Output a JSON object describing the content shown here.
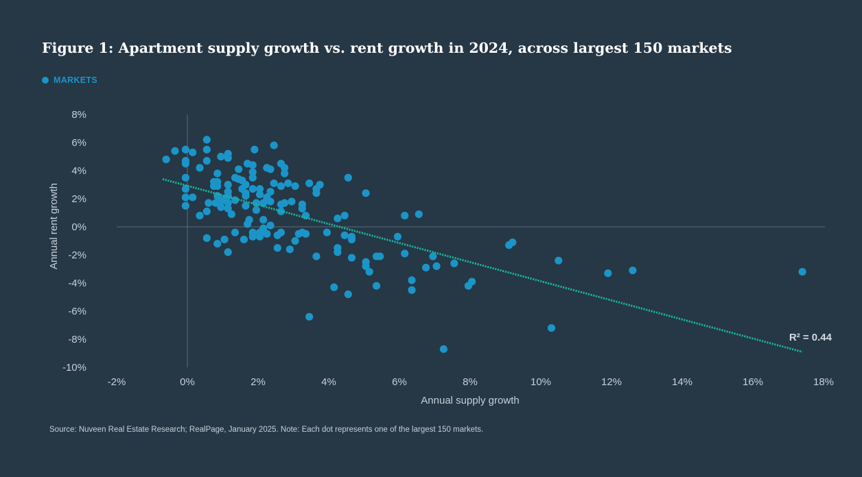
{
  "title": "Figure 1: Apartment supply growth vs. rent growth in 2024, across largest 150 markets",
  "legend": {
    "label": "MARKETS"
  },
  "source": "Source: Nuveen Real Estate Research; RealPage, January 2025. Note: Each dot represents one of the largest 150 markets.",
  "colors": {
    "background": "#263746",
    "point": "#1b95c8",
    "trend": "#19b59a",
    "axis": "#5a6b7a",
    "text": "#c7d0d8"
  },
  "chart_data": {
    "type": "scatter",
    "title": "Figure 1: Apartment supply growth vs. rent growth in 2024, across largest 150 markets",
    "xlabel": "Annual supply growth",
    "ylabel": "Annual rent growth",
    "xlim": [
      -2,
      18
    ],
    "ylim": [
      -10,
      8
    ],
    "xticks": [
      -2,
      0,
      2,
      4,
      6,
      8,
      10,
      12,
      14,
      16,
      18
    ],
    "yticks": [
      -10,
      -8,
      -6,
      -4,
      -2,
      0,
      2,
      4,
      6,
      8
    ],
    "x_tick_labels": [
      "-2%",
      "0%",
      "2%",
      "4%",
      "6%",
      "8%",
      "10%",
      "12%",
      "14%",
      "16%",
      "18%"
    ],
    "y_tick_labels": [
      "-10%",
      "-8%",
      "-6%",
      "-4%",
      "-2%",
      "0%",
      "2%",
      "4%",
      "6%",
      "8%"
    ],
    "legend": [
      "MARKETS"
    ],
    "annotation": "R² = 0.44",
    "trendline": {
      "x": [
        -0.7,
        17.4
      ],
      "y": [
        3.4,
        -8.9
      ]
    },
    "series": [
      {
        "name": "MARKETS",
        "points": [
          [
            -0.6,
            4.8
          ],
          [
            -0.35,
            5.4
          ],
          [
            -0.05,
            5.5
          ],
          [
            0.15,
            5.3
          ],
          [
            -0.05,
            4.7
          ],
          [
            -0.05,
            4.5
          ],
          [
            -0.05,
            3.5
          ],
          [
            -0.05,
            2.7
          ],
          [
            -0.05,
            2.1
          ],
          [
            -0.05,
            1.5
          ],
          [
            0.15,
            2.1
          ],
          [
            0.35,
            4.2
          ],
          [
            0.35,
            0.8
          ],
          [
            0.55,
            6.2
          ],
          [
            0.55,
            5.5
          ],
          [
            0.55,
            4.7
          ],
          [
            0.55,
            1.1
          ],
          [
            0.6,
            1.7
          ],
          [
            0.55,
            -0.8
          ],
          [
            0.75,
            3.2
          ],
          [
            0.75,
            2.9
          ],
          [
            0.85,
            3.8
          ],
          [
            0.85,
            3.2
          ],
          [
            0.85,
            2.9
          ],
          [
            0.85,
            2.2
          ],
          [
            0.8,
            1.7
          ],
          [
            0.95,
            1.4
          ],
          [
            0.95,
            1.8
          ],
          [
            0.95,
            5.0
          ],
          [
            1.05,
            2.0
          ],
          [
            0.85,
            -1.2
          ],
          [
            1.15,
            5.2
          ],
          [
            1.15,
            4.9
          ],
          [
            1.15,
            3.0
          ],
          [
            1.15,
            2.5
          ],
          [
            1.15,
            2.2
          ],
          [
            1.15,
            1.7
          ],
          [
            1.15,
            1.3
          ],
          [
            1.25,
            0.9
          ],
          [
            1.05,
            -0.9
          ],
          [
            1.15,
            -1.8
          ],
          [
            1.35,
            3.5
          ],
          [
            1.35,
            1.9
          ],
          [
            1.35,
            -0.4
          ],
          [
            1.45,
            4.1
          ],
          [
            1.45,
            3.4
          ],
          [
            1.55,
            3.3
          ],
          [
            1.55,
            2.7
          ],
          [
            1.6,
            -0.9
          ],
          [
            1.65,
            3.0
          ],
          [
            1.65,
            2.4
          ],
          [
            1.65,
            2.2
          ],
          [
            1.65,
            1.5
          ],
          [
            1.7,
            4.5
          ],
          [
            1.7,
            0.2
          ],
          [
            1.75,
            0.5
          ],
          [
            1.85,
            4.4
          ],
          [
            1.85,
            3.9
          ],
          [
            1.85,
            3.5
          ],
          [
            1.85,
            2.7
          ],
          [
            1.85,
            -0.4
          ],
          [
            1.85,
            -0.7
          ],
          [
            1.9,
            5.5
          ],
          [
            1.95,
            1.7
          ],
          [
            1.95,
            1.2
          ],
          [
            2.05,
            2.7
          ],
          [
            2.05,
            2.3
          ],
          [
            2.05,
            -0.4
          ],
          [
            2.05,
            -0.7
          ],
          [
            2.15,
            1.7
          ],
          [
            2.15,
            0.5
          ],
          [
            2.15,
            -0.1
          ],
          [
            2.25,
            4.2
          ],
          [
            2.25,
            2.1
          ],
          [
            2.25,
            -0.5
          ],
          [
            2.35,
            4.1
          ],
          [
            2.35,
            2.5
          ],
          [
            2.35,
            1.8
          ],
          [
            2.35,
            0.1
          ],
          [
            2.45,
            5.8
          ],
          [
            2.45,
            3.1
          ],
          [
            2.55,
            -0.6
          ],
          [
            2.55,
            -1.5
          ],
          [
            2.65,
            4.5
          ],
          [
            2.65,
            2.9
          ],
          [
            2.65,
            1.6
          ],
          [
            2.65,
            1.1
          ],
          [
            2.65,
            -0.4
          ],
          [
            2.75,
            4.2
          ],
          [
            2.75,
            3.8
          ],
          [
            2.75,
            1.7
          ],
          [
            2.85,
            3.1
          ],
          [
            2.95,
            1.8
          ],
          [
            2.9,
            -1.6
          ],
          [
            3.05,
            2.9
          ],
          [
            3.05,
            -1.0
          ],
          [
            3.15,
            -0.5
          ],
          [
            3.25,
            1.6
          ],
          [
            3.25,
            1.3
          ],
          [
            3.35,
            0.8
          ],
          [
            3.35,
            -0.5
          ],
          [
            3.25,
            -0.4
          ],
          [
            3.45,
            3.1
          ],
          [
            3.45,
            -6.4
          ],
          [
            3.65,
            2.7
          ],
          [
            3.65,
            2.4
          ],
          [
            3.75,
            3.0
          ],
          [
            3.65,
            -2.1
          ],
          [
            3.95,
            -0.4
          ],
          [
            4.15,
            -4.3
          ],
          [
            4.25,
            0.6
          ],
          [
            4.25,
            -1.5
          ],
          [
            4.25,
            -1.8
          ],
          [
            4.45,
            0.8
          ],
          [
            4.45,
            -0.6
          ],
          [
            4.55,
            3.5
          ],
          [
            4.55,
            -4.8
          ],
          [
            4.65,
            -0.7
          ],
          [
            4.65,
            -0.9
          ],
          [
            4.65,
            -2.2
          ],
          [
            5.05,
            2.4
          ],
          [
            5.05,
            -2.5
          ],
          [
            5.05,
            -2.8
          ],
          [
            5.15,
            -3.2
          ],
          [
            5.35,
            -2.1
          ],
          [
            5.45,
            -2.1
          ],
          [
            5.35,
            -4.2
          ],
          [
            5.95,
            -0.7
          ],
          [
            6.15,
            0.8
          ],
          [
            6.15,
            -1.9
          ],
          [
            6.35,
            -3.8
          ],
          [
            6.35,
            -4.5
          ],
          [
            6.55,
            0.9
          ],
          [
            6.75,
            -2.9
          ],
          [
            6.95,
            -2.1
          ],
          [
            7.05,
            -2.8
          ],
          [
            7.25,
            -8.7
          ],
          [
            7.55,
            -2.6
          ],
          [
            7.95,
            -4.2
          ],
          [
            8.05,
            -3.9
          ],
          [
            9.1,
            -1.3
          ],
          [
            9.2,
            -1.1
          ],
          [
            10.3,
            -7.2
          ],
          [
            10.5,
            -2.4
          ],
          [
            11.9,
            -3.3
          ],
          [
            12.6,
            -3.1
          ],
          [
            17.4,
            -3.2
          ]
        ]
      }
    ]
  }
}
